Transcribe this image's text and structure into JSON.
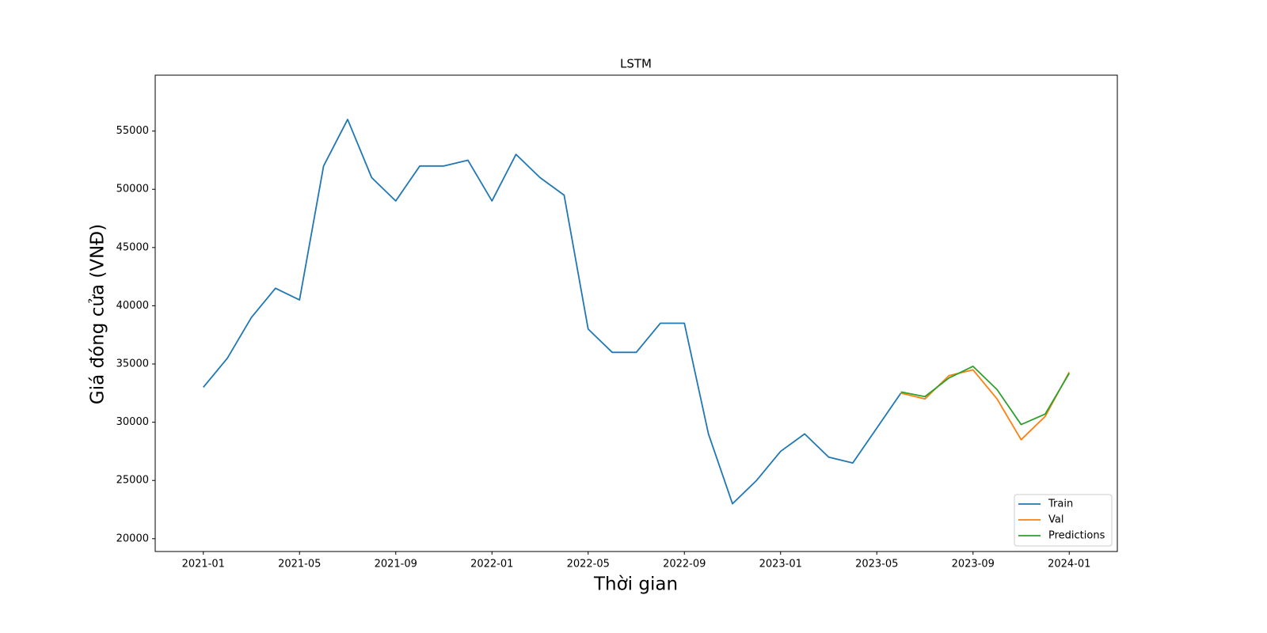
{
  "chart_data": {
    "type": "line",
    "title": "LSTM",
    "xlabel": "Thời gian",
    "ylabel": "Giá đóng cửa (VNĐ)",
    "xlim": [
      "2020-11",
      "2024-03"
    ],
    "xticks": [
      "2021-01",
      "2021-05",
      "2021-09",
      "2022-01",
      "2022-05",
      "2022-09",
      "2023-01",
      "2023-05",
      "2023-09",
      "2024-01"
    ],
    "ylim": [
      18900,
      59800
    ],
    "yticks": [
      20000,
      25000,
      30000,
      35000,
      40000,
      45000,
      50000,
      55000
    ],
    "legend": "lower right",
    "series": [
      {
        "name": "Train",
        "color": "#1f77b4",
        "x": [
          "2021-01",
          "2021-02",
          "2021-03",
          "2021-04",
          "2021-05",
          "2021-06",
          "2021-07",
          "2021-08",
          "2021-09",
          "2021-10",
          "2021-11",
          "2021-12",
          "2022-01",
          "2022-02",
          "2022-03",
          "2022-04",
          "2022-05",
          "2022-06",
          "2022-07",
          "2022-08",
          "2022-09",
          "2022-10",
          "2022-11",
          "2022-12",
          "2023-01",
          "2023-02",
          "2023-03",
          "2023-04",
          "2023-05",
          "2023-06"
        ],
        "values": [
          33000,
          35500,
          39000,
          41500,
          40500,
          52000,
          56000,
          51000,
          49000,
          52000,
          52000,
          52500,
          49000,
          53000,
          51000,
          49500,
          38000,
          36000,
          36000,
          38500,
          38500,
          29000,
          23000,
          25000,
          27500,
          29000,
          27000,
          26500,
          29500,
          32500
        ]
      },
      {
        "name": "Val",
        "color": "#ff7f0e",
        "x": [
          "2023-06",
          "2023-07",
          "2023-08",
          "2023-09",
          "2023-10",
          "2023-11",
          "2023-12",
          "2024-01"
        ],
        "values": [
          32500,
          32000,
          34000,
          34500,
          32000,
          28500,
          30500,
          34300
        ]
      },
      {
        "name": "Predictions",
        "color": "#2ca02c",
        "x": [
          "2023-06",
          "2023-07",
          "2023-08",
          "2023-09",
          "2023-10",
          "2023-11",
          "2023-12",
          "2024-01"
        ],
        "values": [
          32600,
          32200,
          33800,
          34800,
          32800,
          29800,
          30700,
          34200
        ]
      }
    ]
  }
}
